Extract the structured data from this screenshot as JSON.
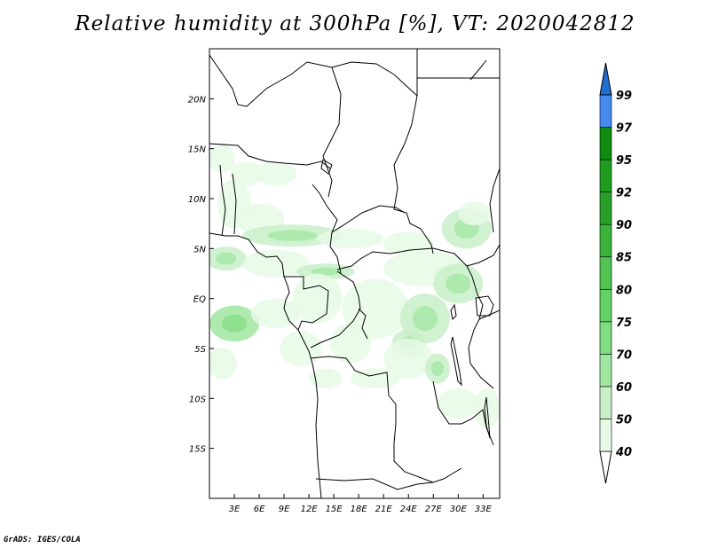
{
  "title": "Relative humidity at 300hPa [%], VT: 2020042812",
  "footer": "GrADS: IGES/COLA",
  "map": {
    "lon_range": [
      0,
      35
    ],
    "lat_range": [
      -20,
      25
    ],
    "lat_ticks": [
      {
        "value": 20,
        "label": "20N"
      },
      {
        "value": 15,
        "label": "15N"
      },
      {
        "value": 10,
        "label": "10N"
      },
      {
        "value": 5,
        "label": "5N"
      },
      {
        "value": 0,
        "label": "EQ"
      },
      {
        "value": -5,
        "label": "5S"
      },
      {
        "value": -10,
        "label": "10S"
      },
      {
        "value": -15,
        "label": "15S"
      }
    ],
    "lon_ticks": [
      {
        "value": 3,
        "label": "3E"
      },
      {
        "value": 6,
        "label": "6E"
      },
      {
        "value": 9,
        "label": "9E"
      },
      {
        "value": 12,
        "label": "12E"
      },
      {
        "value": 15,
        "label": "15E"
      },
      {
        "value": 18,
        "label": "18E"
      },
      {
        "value": 21,
        "label": "21E"
      },
      {
        "value": 24,
        "label": "24E"
      },
      {
        "value": 27,
        "label": "27E"
      },
      {
        "value": 30,
        "label": "30E"
      },
      {
        "value": 33,
        "label": "33E"
      }
    ],
    "humid_patches": [
      {
        "lon": 1.5,
        "lat": 14,
        "rx": 1.6,
        "ry": 1.4,
        "level": 0
      },
      {
        "lon": 4.5,
        "lat": 12.5,
        "rx": 2,
        "ry": 1.2,
        "level": 0
      },
      {
        "lon": 8,
        "lat": 12.5,
        "rx": 2.5,
        "ry": 1.2,
        "level": 0
      },
      {
        "lon": 3,
        "lat": 9.5,
        "rx": 2,
        "ry": 2.5,
        "level": 0
      },
      {
        "lon": 6,
        "lat": 8,
        "rx": 3,
        "ry": 1.5,
        "level": 0
      },
      {
        "lon": 10,
        "lat": 6.3,
        "rx": 6,
        "ry": 1.1,
        "level": 1
      },
      {
        "lon": 17,
        "lat": 6,
        "rx": 4,
        "ry": 1,
        "level": 0
      },
      {
        "lon": 24,
        "lat": 5.5,
        "rx": 3,
        "ry": 1.2,
        "level": 0
      },
      {
        "lon": 31,
        "lat": 7,
        "rx": 3,
        "ry": 2,
        "level": 1
      },
      {
        "lon": 32,
        "lat": 8.5,
        "rx": 2,
        "ry": 1.2,
        "level": 0
      },
      {
        "lon": 2,
        "lat": 4,
        "rx": 2.5,
        "ry": 1.2,
        "level": 1
      },
      {
        "lon": 8,
        "lat": 3.5,
        "rx": 4,
        "ry": 1.4,
        "level": 0
      },
      {
        "lon": 14,
        "lat": 2.7,
        "rx": 3.5,
        "ry": 0.8,
        "level": 1
      },
      {
        "lon": 26,
        "lat": 3,
        "rx": 5,
        "ry": 1.8,
        "level": 0
      },
      {
        "lon": 30,
        "lat": 1.5,
        "rx": 3,
        "ry": 2,
        "level": 1
      },
      {
        "lon": 3,
        "lat": -2.5,
        "rx": 3,
        "ry": 1.8,
        "level": 2
      },
      {
        "lon": 8,
        "lat": -1.5,
        "rx": 3,
        "ry": 1.5,
        "level": 0
      },
      {
        "lon": 13,
        "lat": 0,
        "rx": 3,
        "ry": 2.5,
        "level": 0
      },
      {
        "lon": 20,
        "lat": -1,
        "rx": 4,
        "ry": 3,
        "level": 0
      },
      {
        "lon": 26,
        "lat": -2,
        "rx": 3,
        "ry": 2.5,
        "level": 1
      },
      {
        "lon": 1.5,
        "lat": -6.5,
        "rx": 1.8,
        "ry": 1.6,
        "level": 0
      },
      {
        "lon": 11,
        "lat": -5,
        "rx": 2.5,
        "ry": 1.8,
        "level": 0
      },
      {
        "lon": 17,
        "lat": -4.5,
        "rx": 2.5,
        "ry": 2,
        "level": 0
      },
      {
        "lon": 24,
        "lat": -4.5,
        "rx": 2,
        "ry": 1.4,
        "level": 1
      },
      {
        "lon": 24,
        "lat": -6,
        "rx": 3,
        "ry": 2,
        "level": 0
      },
      {
        "lon": 27.5,
        "lat": -7,
        "rx": 1.5,
        "ry": 1.5,
        "level": 1
      },
      {
        "lon": 14,
        "lat": -8,
        "rx": 2,
        "ry": 1,
        "level": 0
      },
      {
        "lon": 20,
        "lat": -8,
        "rx": 3,
        "ry": 1,
        "level": 0
      },
      {
        "lon": 30,
        "lat": -10.5,
        "rx": 2.5,
        "ry": 1.5,
        "level": 0
      },
      {
        "lon": 33.5,
        "lat": -11,
        "rx": 1.5,
        "ry": 2,
        "level": 0
      }
    ]
  },
  "colorbar": {
    "levels": [
      {
        "label": "40",
        "color": "#e6fae6"
      },
      {
        "label": "50",
        "color": "#c8f0c8"
      },
      {
        "label": "60",
        "color": "#a0e6a0"
      },
      {
        "label": "70",
        "color": "#82dc82"
      },
      {
        "label": "75",
        "color": "#64d264"
      },
      {
        "label": "80",
        "color": "#50c350"
      },
      {
        "label": "85",
        "color": "#3cb43c"
      },
      {
        "label": "90",
        "color": "#28a028"
      },
      {
        "label": "92",
        "color": "#1e9c1e"
      },
      {
        "label": "95",
        "color": "#0f8c0f"
      },
      {
        "label": "97",
        "color": "#468cf0"
      },
      {
        "label": "99",
        "color": "#2878dc"
      }
    ],
    "below_color": "#ffffff",
    "above_color": "#1e6ed2"
  }
}
